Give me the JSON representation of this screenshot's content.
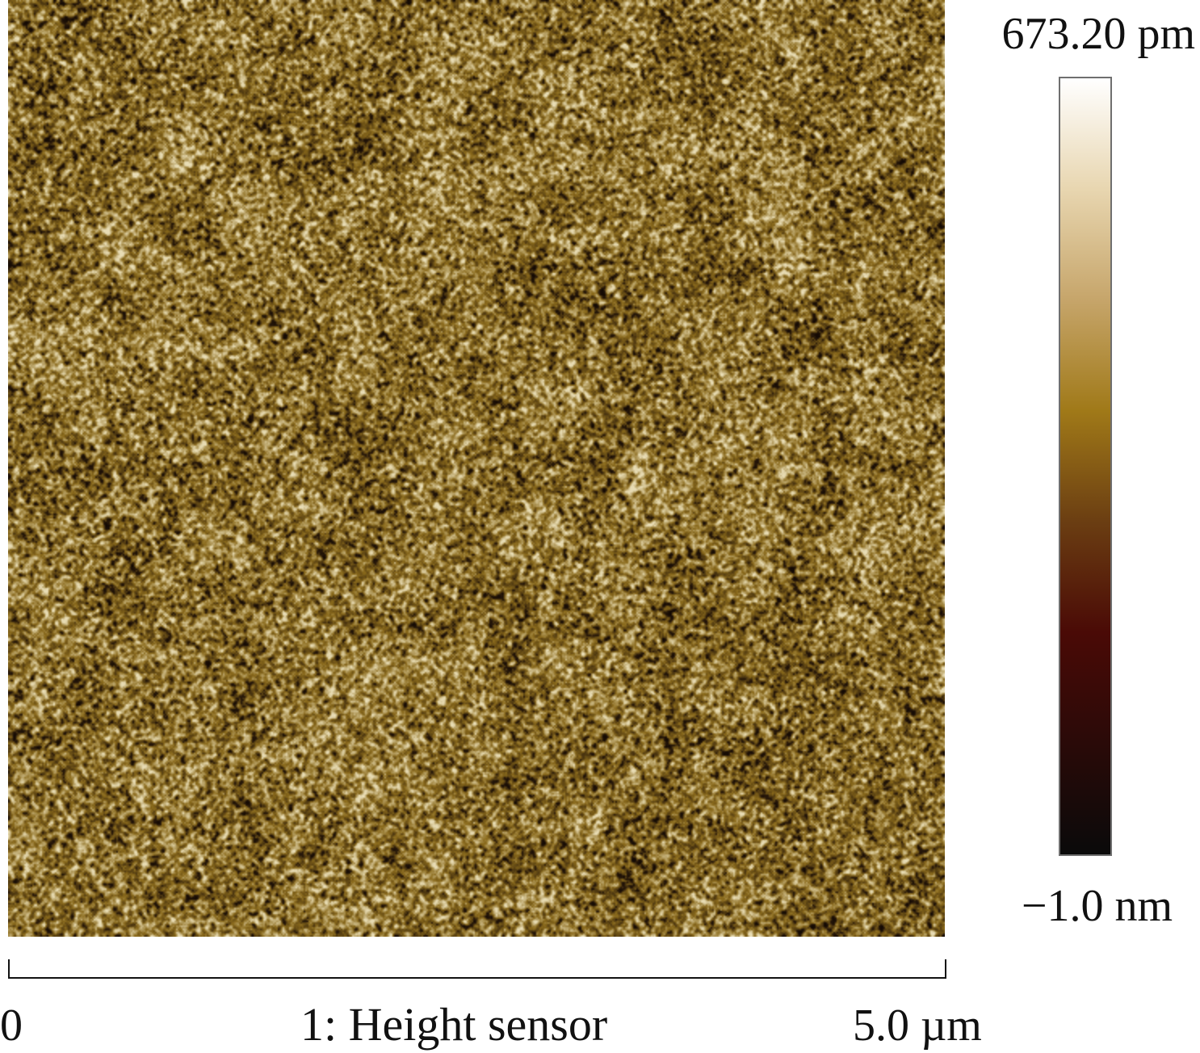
{
  "image": {
    "channel_label": "1: Height sensor",
    "surface_palette": {
      "base": "#8a6a1c",
      "dark": "#2a1a0a",
      "light": "#e8dcb4",
      "pit": "#140a04"
    }
  },
  "colorbar": {
    "max_label": "673.20 pm",
    "min_label": "−1.0 nm",
    "gradient_colors": [
      "#ffffff",
      "#e8d6b0",
      "#c6a56a",
      "#a07918",
      "#6b3e12",
      "#4a0a06",
      "#2a0a08",
      "#0a0a0a"
    ],
    "border_color": "#6f6f6f"
  },
  "scale": {
    "start_label": "0",
    "end_label": "5.0 µm"
  }
}
